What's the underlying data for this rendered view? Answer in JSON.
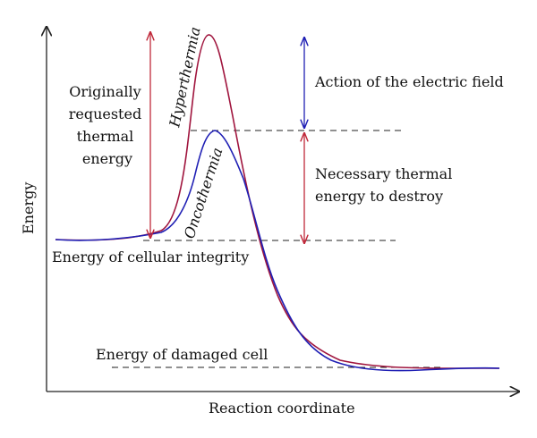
{
  "axes": {
    "x_label": "Reaction coordinate",
    "y_label": "Energy"
  },
  "curves": [
    {
      "name": "Hyperthermia",
      "color": "#a0153e"
    },
    {
      "name": "Oncothermia",
      "color": "#1f1fb4"
    }
  ],
  "labels": {
    "originally": [
      "Originally",
      "requested",
      "thermal",
      "energy"
    ],
    "electric_field": "Action of the electric field",
    "necessary": [
      "Necessary thermal",
      "energy to destroy"
    ],
    "cellular_integrity": "Energy of cellular integrity",
    "damaged_cell": "Energy of damaged cell"
  },
  "colors": {
    "red": "#c0283a",
    "blue": "#1f1fb4",
    "dashed": "#222222",
    "axis": "#222222"
  }
}
